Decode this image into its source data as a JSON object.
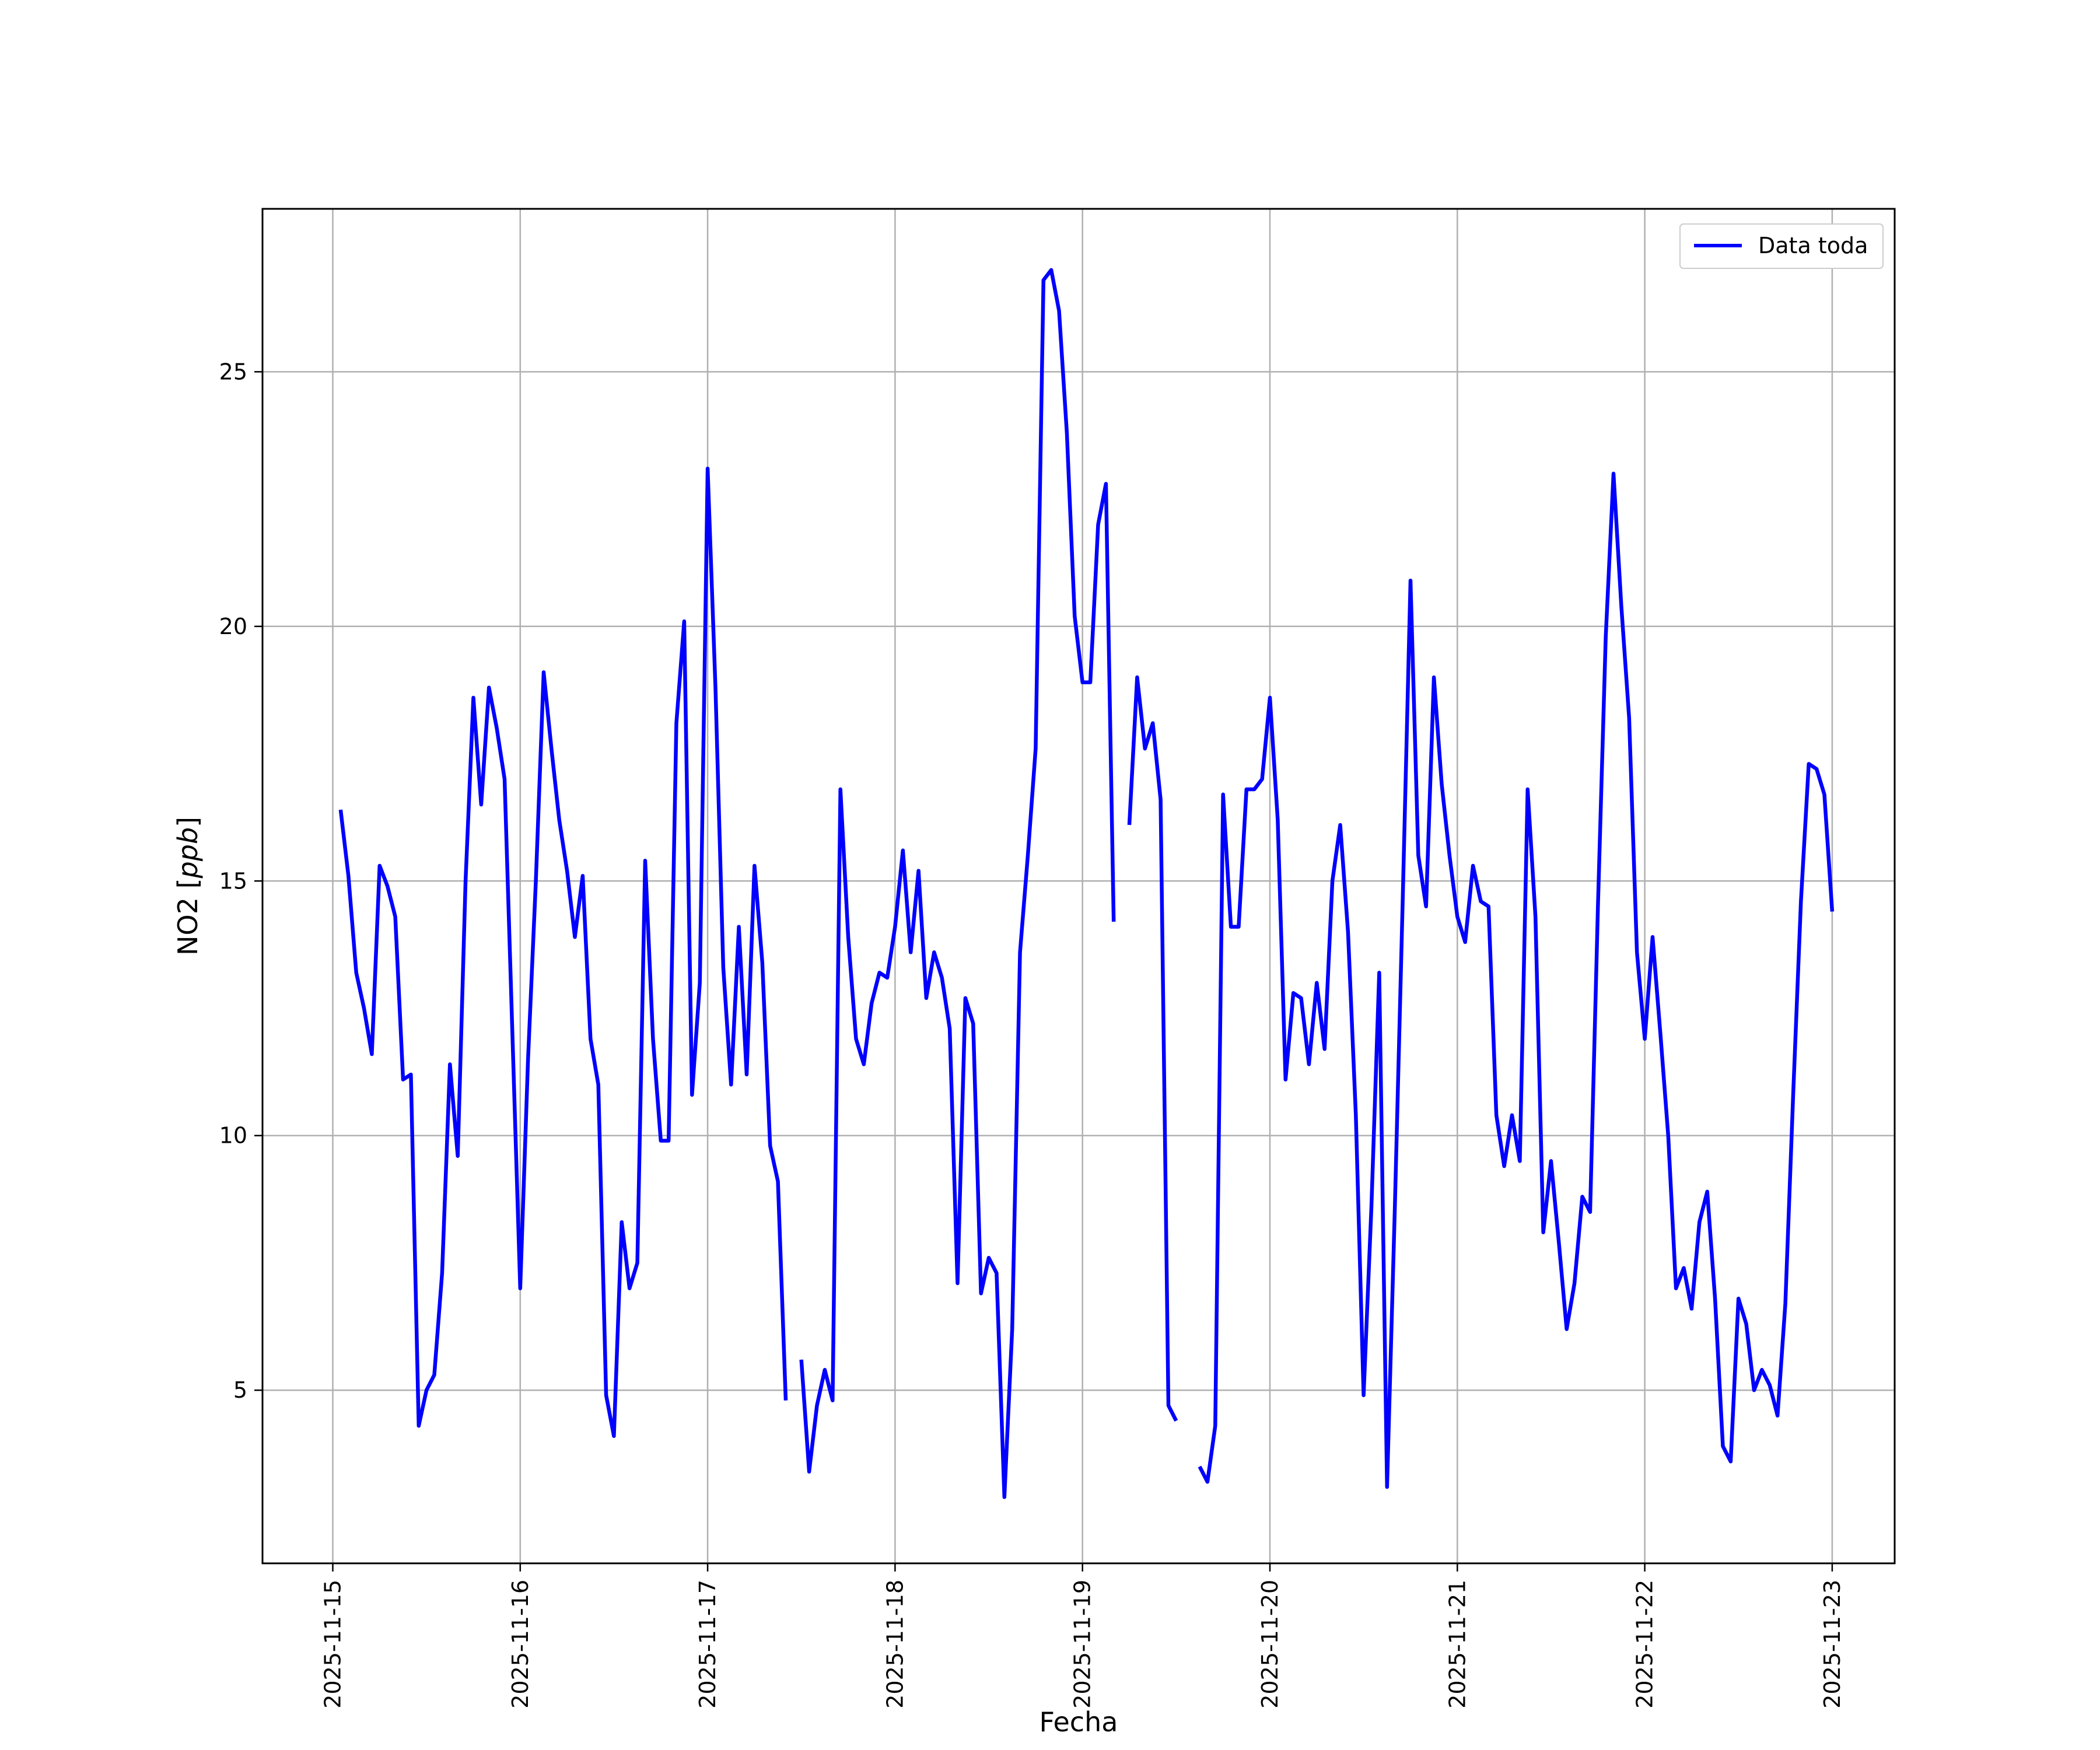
{
  "chart_data": {
    "type": "line",
    "title": "",
    "xlabel": "Fecha",
    "ylabel": "NO2 [ppb]",
    "ylabel_main": "NO2 [",
    "ylabel_unit": "ppb",
    "ylabel_close": "]",
    "grid": true,
    "legend_position": "top-right",
    "x_range": [
      "2025-11-14T15:00",
      "2025-11-23T08:00"
    ],
    "ylim": [
      1.6,
      28.2
    ],
    "x_ticks": [
      "2025-11-15",
      "2025-11-16",
      "2025-11-17",
      "2025-11-18",
      "2025-11-19",
      "2025-11-20",
      "2025-11-21",
      "2025-11-22",
      "2025-11-23"
    ],
    "y_ticks": [
      5,
      10,
      15,
      20,
      25
    ],
    "series": [
      {
        "name": "Data toda",
        "color": "#0000ff",
        "points": [
          [
            "2025-11-15T00:00",
            null
          ],
          [
            "2025-11-15T01:00",
            16.4
          ],
          [
            "2025-11-15T02:00",
            15.1
          ],
          [
            "2025-11-15T03:00",
            13.2
          ],
          [
            "2025-11-15T04:00",
            12.5
          ],
          [
            "2025-11-15T05:00",
            11.6
          ],
          [
            "2025-11-15T06:00",
            15.3
          ],
          [
            "2025-11-15T07:00",
            14.9
          ],
          [
            "2025-11-15T08:00",
            14.3
          ],
          [
            "2025-11-15T09:00",
            11.1
          ],
          [
            "2025-11-15T10:00",
            11.2
          ],
          [
            "2025-11-15T11:00",
            4.3
          ],
          [
            "2025-11-15T12:00",
            5.0
          ],
          [
            "2025-11-15T13:00",
            5.3
          ],
          [
            "2025-11-15T14:00",
            7.3
          ],
          [
            "2025-11-15T15:00",
            11.4
          ],
          [
            "2025-11-15T16:00",
            9.6
          ],
          [
            "2025-11-15T17:00",
            15.0
          ],
          [
            "2025-11-15T18:00",
            18.6
          ],
          [
            "2025-11-15T19:00",
            16.5
          ],
          [
            "2025-11-15T20:00",
            18.8
          ],
          [
            "2025-11-15T21:00",
            18.0
          ],
          [
            "2025-11-15T22:00",
            17.0
          ],
          [
            "2025-11-15T23:00",
            12.0
          ],
          [
            "2025-11-16T00:00",
            7.0
          ],
          [
            "2025-11-16T01:00",
            11.5
          ],
          [
            "2025-11-16T02:00",
            15.0
          ],
          [
            "2025-11-16T03:00",
            19.1
          ],
          [
            "2025-11-16T04:00",
            17.6
          ],
          [
            "2025-11-16T05:00",
            16.2
          ],
          [
            "2025-11-16T06:00",
            15.2
          ],
          [
            "2025-11-16T07:00",
            13.9
          ],
          [
            "2025-11-16T08:00",
            15.1
          ],
          [
            "2025-11-16T09:00",
            11.9
          ],
          [
            "2025-11-16T10:00",
            11.0
          ],
          [
            "2025-11-16T11:00",
            4.9
          ],
          [
            "2025-11-16T12:00",
            4.1
          ],
          [
            "2025-11-16T13:00",
            8.3
          ],
          [
            "2025-11-16T14:00",
            7.0
          ],
          [
            "2025-11-16T15:00",
            7.5
          ],
          [
            "2025-11-16T16:00",
            15.4
          ],
          [
            "2025-11-16T17:00",
            11.9
          ],
          [
            "2025-11-16T18:00",
            9.9
          ],
          [
            "2025-11-16T19:00",
            9.9
          ],
          [
            "2025-11-16T20:00",
            18.1
          ],
          [
            "2025-11-16T21:00",
            20.1
          ],
          [
            "2025-11-16T22:00",
            10.8
          ],
          [
            "2025-11-16T23:00",
            13.0
          ],
          [
            "2025-11-17T00:00",
            23.1
          ],
          [
            "2025-11-17T01:00",
            18.8
          ],
          [
            "2025-11-17T02:00",
            13.3
          ],
          [
            "2025-11-17T03:00",
            11.0
          ],
          [
            "2025-11-17T04:00",
            14.1
          ],
          [
            "2025-11-17T05:00",
            11.2
          ],
          [
            "2025-11-17T06:00",
            15.3
          ],
          [
            "2025-11-17T07:00",
            13.4
          ],
          [
            "2025-11-17T08:00",
            9.8
          ],
          [
            "2025-11-17T09:00",
            9.1
          ],
          [
            "2025-11-17T10:00",
            4.8
          ],
          [
            "2025-11-17T11:00",
            null
          ],
          [
            "2025-11-17T12:00",
            5.6
          ],
          [
            "2025-11-17T13:00",
            3.4
          ],
          [
            "2025-11-17T14:00",
            4.7
          ],
          [
            "2025-11-17T15:00",
            5.4
          ],
          [
            "2025-11-17T16:00",
            4.8
          ],
          [
            "2025-11-17T17:00",
            16.8
          ],
          [
            "2025-11-17T18:00",
            13.9
          ],
          [
            "2025-11-17T19:00",
            11.9
          ],
          [
            "2025-11-17T20:00",
            11.4
          ],
          [
            "2025-11-17T21:00",
            12.6
          ],
          [
            "2025-11-17T22:00",
            13.2
          ],
          [
            "2025-11-17T23:00",
            13.1
          ],
          [
            "2025-11-18T00:00",
            14.1
          ],
          [
            "2025-11-18T01:00",
            15.6
          ],
          [
            "2025-11-18T02:00",
            13.6
          ],
          [
            "2025-11-18T03:00",
            15.2
          ],
          [
            "2025-11-18T04:00",
            12.7
          ],
          [
            "2025-11-18T05:00",
            13.6
          ],
          [
            "2025-11-18T06:00",
            13.1
          ],
          [
            "2025-11-18T07:00",
            12.1
          ],
          [
            "2025-11-18T08:00",
            7.1
          ],
          [
            "2025-11-18T09:00",
            12.7
          ],
          [
            "2025-11-18T10:00",
            12.2
          ],
          [
            "2025-11-18T11:00",
            6.9
          ],
          [
            "2025-11-18T12:00",
            7.6
          ],
          [
            "2025-11-18T13:00",
            7.3
          ],
          [
            "2025-11-18T14:00",
            2.9
          ],
          [
            "2025-11-18T15:00",
            6.2
          ],
          [
            "2025-11-18T16:00",
            13.6
          ],
          [
            "2025-11-18T17:00",
            15.5
          ],
          [
            "2025-11-18T18:00",
            17.6
          ],
          [
            "2025-11-18T19:00",
            26.8
          ],
          [
            "2025-11-18T20:00",
            27.0
          ],
          [
            "2025-11-18T21:00",
            26.2
          ],
          [
            "2025-11-18T22:00",
            23.8
          ],
          [
            "2025-11-18T23:00",
            20.2
          ],
          [
            "2025-11-19T00:00",
            18.9
          ],
          [
            "2025-11-19T01:00",
            18.9
          ],
          [
            "2025-11-19T02:00",
            22.0
          ],
          [
            "2025-11-19T03:00",
            22.8
          ],
          [
            "2025-11-19T04:00",
            14.2
          ],
          [
            "2025-11-19T05:00",
            null
          ],
          [
            "2025-11-19T06:00",
            16.1
          ],
          [
            "2025-11-19T07:00",
            19.0
          ],
          [
            "2025-11-19T08:00",
            17.6
          ],
          [
            "2025-11-19T09:00",
            18.1
          ],
          [
            "2025-11-19T10:00",
            16.6
          ],
          [
            "2025-11-19T11:00",
            4.7
          ],
          [
            "2025-11-19T12:00",
            4.4
          ],
          [
            "2025-11-19T13:00",
            null
          ],
          [
            "2025-11-19T14:00",
            null
          ],
          [
            "2025-11-19T15:00",
            3.5
          ],
          [
            "2025-11-19T16:00",
            3.2
          ],
          [
            "2025-11-19T17:00",
            4.3
          ],
          [
            "2025-11-19T18:00",
            16.7
          ],
          [
            "2025-11-19T19:00",
            14.1
          ],
          [
            "2025-11-19T20:00",
            14.1
          ],
          [
            "2025-11-19T21:00",
            16.8
          ],
          [
            "2025-11-19T22:00",
            16.8
          ],
          [
            "2025-11-19T23:00",
            17.0
          ],
          [
            "2025-11-20T00:00",
            18.6
          ],
          [
            "2025-11-20T01:00",
            16.2
          ],
          [
            "2025-11-20T02:00",
            11.1
          ],
          [
            "2025-11-20T03:00",
            12.8
          ],
          [
            "2025-11-20T04:00",
            12.7
          ],
          [
            "2025-11-20T05:00",
            11.4
          ],
          [
            "2025-11-20T06:00",
            13.0
          ],
          [
            "2025-11-20T07:00",
            11.7
          ],
          [
            "2025-11-20T08:00",
            15.0
          ],
          [
            "2025-11-20T09:00",
            16.1
          ],
          [
            "2025-11-20T10:00",
            14.0
          ],
          [
            "2025-11-20T11:00",
            10.4
          ],
          [
            "2025-11-20T12:00",
            4.9
          ],
          [
            "2025-11-20T13:00",
            8.6
          ],
          [
            "2025-11-20T14:00",
            13.2
          ],
          [
            "2025-11-20T15:00",
            3.1
          ],
          [
            "2025-11-20T16:00",
            8.6
          ],
          [
            "2025-11-20T17:00",
            14.6
          ],
          [
            "2025-11-20T18:00",
            20.9
          ],
          [
            "2025-11-20T19:00",
            15.5
          ],
          [
            "2025-11-20T20:00",
            14.5
          ],
          [
            "2025-11-20T21:00",
            19.0
          ],
          [
            "2025-11-20T22:00",
            16.9
          ],
          [
            "2025-11-20T23:00",
            15.5
          ],
          [
            "2025-11-21T00:00",
            14.3
          ],
          [
            "2025-11-21T01:00",
            13.8
          ],
          [
            "2025-11-21T02:00",
            15.3
          ],
          [
            "2025-11-21T03:00",
            14.6
          ],
          [
            "2025-11-21T04:00",
            14.5
          ],
          [
            "2025-11-21T05:00",
            10.4
          ],
          [
            "2025-11-21T06:00",
            9.4
          ],
          [
            "2025-11-21T07:00",
            10.4
          ],
          [
            "2025-11-21T08:00",
            9.5
          ],
          [
            "2025-11-21T09:00",
            16.8
          ],
          [
            "2025-11-21T10:00",
            14.3
          ],
          [
            "2025-11-21T11:00",
            8.1
          ],
          [
            "2025-11-21T12:00",
            9.5
          ],
          [
            "2025-11-21T13:00",
            7.9
          ],
          [
            "2025-11-21T14:00",
            6.2
          ],
          [
            "2025-11-21T15:00",
            7.1
          ],
          [
            "2025-11-21T16:00",
            8.8
          ],
          [
            "2025-11-21T17:00",
            8.5
          ],
          [
            "2025-11-21T18:00",
            14.5
          ],
          [
            "2025-11-21T19:00",
            19.8
          ],
          [
            "2025-11-21T20:00",
            23.0
          ],
          [
            "2025-11-21T21:00",
            20.4
          ],
          [
            "2025-11-21T22:00",
            18.2
          ],
          [
            "2025-11-21T23:00",
            13.6
          ],
          [
            "2025-11-22T00:00",
            11.9
          ],
          [
            "2025-11-22T01:00",
            13.9
          ],
          [
            "2025-11-22T02:00",
            12.0
          ],
          [
            "2025-11-22T03:00",
            10.0
          ],
          [
            "2025-11-22T04:00",
            7.0
          ],
          [
            "2025-11-22T05:00",
            7.4
          ],
          [
            "2025-11-22T06:00",
            6.6
          ],
          [
            "2025-11-22T07:00",
            8.3
          ],
          [
            "2025-11-22T08:00",
            8.9
          ],
          [
            "2025-11-22T09:00",
            6.8
          ],
          [
            "2025-11-22T10:00",
            3.9
          ],
          [
            "2025-11-22T11:00",
            3.6
          ],
          [
            "2025-11-22T12:00",
            6.8
          ],
          [
            "2025-11-22T13:00",
            6.3
          ],
          [
            "2025-11-22T14:00",
            5.0
          ],
          [
            "2025-11-22T15:00",
            5.4
          ],
          [
            "2025-11-22T16:00",
            5.1
          ],
          [
            "2025-11-22T17:00",
            4.5
          ],
          [
            "2025-11-22T18:00",
            6.7
          ],
          [
            "2025-11-22T19:00",
            10.8
          ],
          [
            "2025-11-22T20:00",
            14.6
          ],
          [
            "2025-11-22T21:00",
            17.3
          ],
          [
            "2025-11-22T22:00",
            17.2
          ],
          [
            "2025-11-22T23:00",
            16.7
          ],
          [
            "2025-11-23T00:00",
            14.4
          ]
        ]
      }
    ]
  }
}
